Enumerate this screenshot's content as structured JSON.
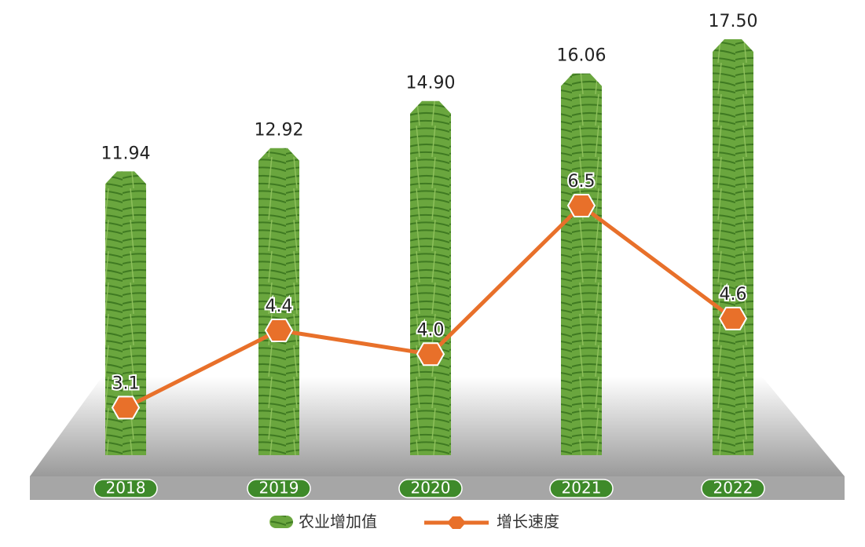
{
  "chart_data": {
    "type": "bar",
    "categories": [
      "2018",
      "2019",
      "2020",
      "2021",
      "2022"
    ],
    "series": [
      {
        "name": "农业增加值",
        "color": "#5c9c3c",
        "values": [
          11.94,
          12.92,
          14.9,
          16.06,
          17.5
        ],
        "value_labels": [
          "11.94",
          "12.92",
          "14.90",
          "16.06",
          "17.50"
        ]
      },
      {
        "name": "增长速度",
        "type": "line",
        "axis": "y2",
        "color": "#e8702a",
        "values": [
          3.1,
          4.4,
          4.0,
          6.5,
          4.6
        ],
        "value_labels": [
          "3.1",
          "4.4",
          "4.0",
          "6.5",
          "4.6"
        ]
      }
    ],
    "ylim": [
      0,
      17.5
    ],
    "y2lim": [
      2.3,
      9.3
    ]
  }
}
